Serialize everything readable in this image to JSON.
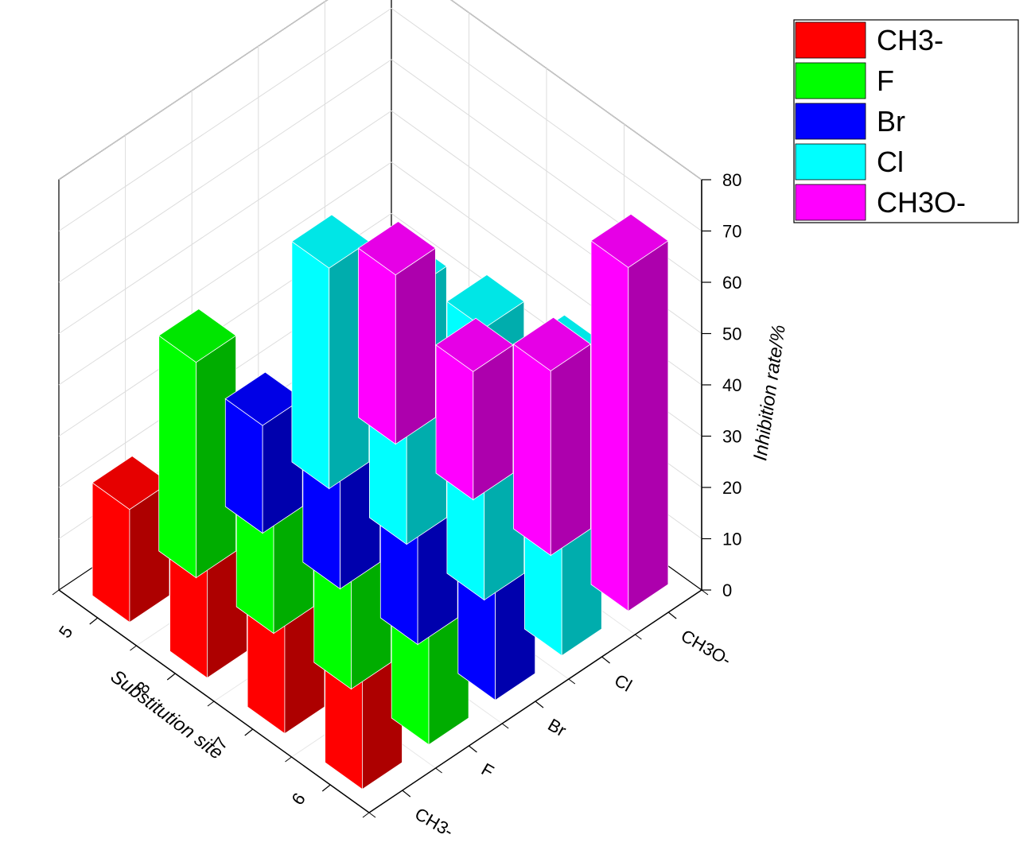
{
  "chart_data": {
    "type": "bar3d",
    "title": "",
    "xlabel": "Substitution site",
    "ylabel": "",
    "zlabel": "Inhibition rate/%",
    "x_categories": [
      "6",
      "7",
      "8",
      "5"
    ],
    "y_categories": [
      "CH3-",
      "F",
      "Br",
      "Cl",
      "CH3O-"
    ],
    "y_tick_labels": [
      "CH3-",
      "F",
      "Br",
      "Cl",
      "CH3O-"
    ],
    "zlim": [
      0,
      80
    ],
    "z_ticks": [
      "0",
      "10",
      "20",
      "30",
      "40",
      "50",
      "60",
      "70",
      "80"
    ],
    "grid": true,
    "legend_position": "top-right",
    "series": [
      {
        "name": "CH3-",
        "color": "#ff0000",
        "values": [
          30,
          36,
          24,
          22
        ]
      },
      {
        "name": "F",
        "color": "#00ff00",
        "values": [
          48,
          47,
          25,
          42
        ]
      },
      {
        "name": "Br",
        "color": "#0000ff",
        "values": [
          52,
          44,
          36,
          21
        ]
      },
      {
        "name": "Cl",
        "color": "#00ffff",
        "values": [
          56,
          53,
          49,
          43
        ]
      },
      {
        "name": "CH3O-",
        "color": "#ff00ff",
        "values": [
          67,
          36,
          25,
          33
        ]
      }
    ]
  }
}
